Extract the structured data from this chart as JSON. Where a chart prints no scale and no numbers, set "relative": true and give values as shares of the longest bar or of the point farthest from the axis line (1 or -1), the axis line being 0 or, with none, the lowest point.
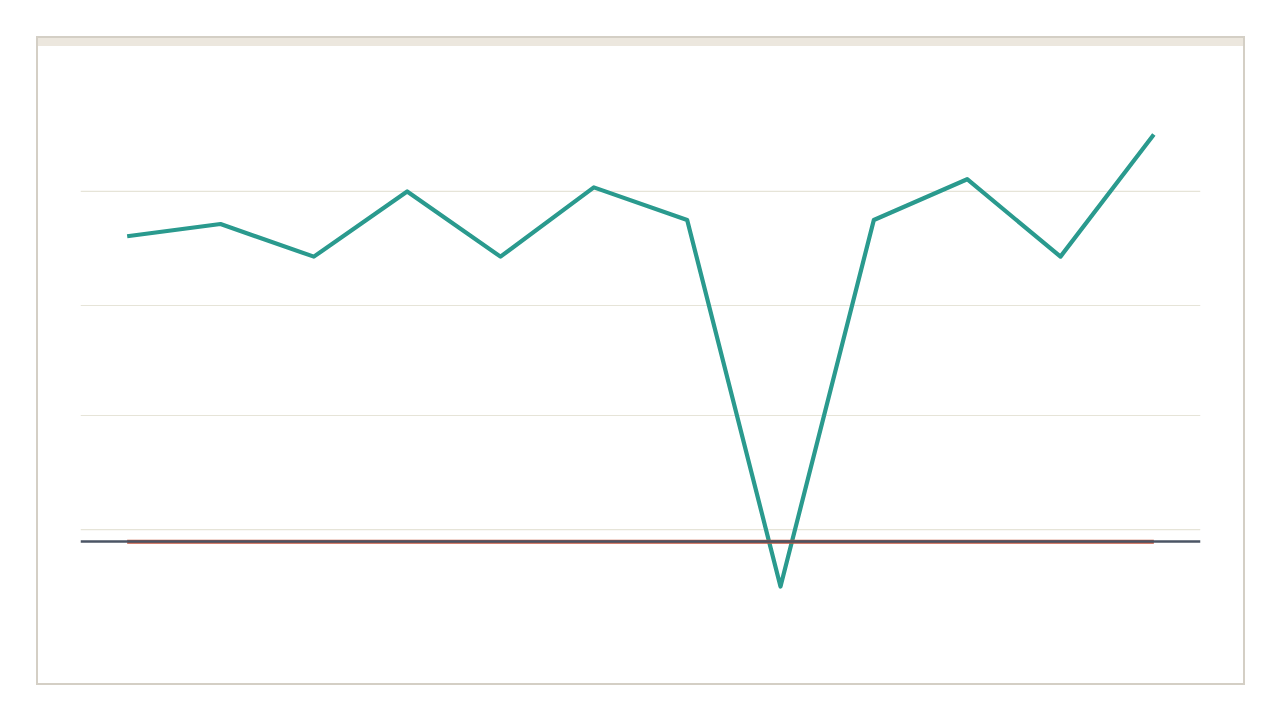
{
  "chart_data": {
    "type": "line",
    "relative": true,
    "categories": [
      null,
      null,
      null,
      null,
      null,
      null,
      null,
      null,
      null,
      null,
      null,
      null
    ],
    "series": [
      {
        "color": "#2a9a8e",
        "values": [
          0.75,
          0.78,
          0.7,
          0.86,
          0.7,
          0.87,
          0.79,
          -0.11,
          0.79,
          0.89,
          0.7,
          1
        ]
      },
      {
        "color": "#c4533b",
        "values": [
          0,
          0,
          0,
          0,
          0,
          0,
          0,
          0,
          0,
          0,
          0,
          0
        ]
      }
    ],
    "ref_lines": [
      {
        "axis": "y",
        "value": 0.86,
        "label": null,
        "color": "#e6e4d8",
        "line_style": "solid"
      },
      {
        "axis": "y",
        "value": 0.58,
        "label": null,
        "color": "#e6e4d8",
        "line_style": "solid"
      },
      {
        "axis": "y",
        "value": 0.31,
        "label": null,
        "color": "#e6e4d8",
        "line_style": "solid"
      },
      {
        "axis": "y",
        "value": 0.03,
        "label": null,
        "color": "#e6e4d8",
        "line_style": "solid"
      }
    ],
    "line_style": "solid"
  }
}
